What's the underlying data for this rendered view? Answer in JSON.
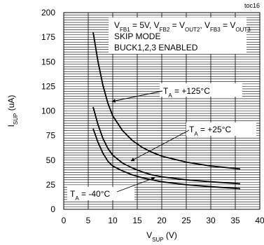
{
  "chart_data": {
    "type": "line",
    "figure_id": "toc16",
    "ylabel": {
      "main": "I",
      "sub": "SUP",
      "tail": " (uA)"
    },
    "xlabel": {
      "main": "V",
      "sub": "SUP",
      "tail": " (V)"
    },
    "xlim": [
      0,
      40
    ],
    "ylim": [
      0,
      200
    ],
    "xticks": [
      0,
      5,
      10,
      15,
      20,
      25,
      30,
      35,
      40
    ],
    "yticks": [
      0,
      25,
      50,
      75,
      100,
      125,
      150,
      175,
      200
    ],
    "grid": true,
    "conditions": [
      [
        {
          "t": "V"
        },
        {
          "t": "FB1",
          "sub": true
        },
        {
          "t": " = 5V, V"
        },
        {
          "t": "FB2",
          "sub": true
        },
        {
          "t": " = V"
        },
        {
          "t": "OUT2",
          "sub": true
        },
        {
          "t": ", V"
        },
        {
          "t": "FB3",
          "sub": true
        },
        {
          "t": " = V"
        },
        {
          "t": "OUT3",
          "sub": true
        }
      ],
      [
        {
          "t": "SKIP MODE"
        }
      ],
      [
        {
          "t": "BUCK1,2,3 ENABLED"
        }
      ]
    ],
    "series": [
      {
        "name": [
          {
            "t": "T"
          },
          {
            "t": "A",
            "sub": true
          },
          {
            "t": " = +125°C"
          }
        ],
        "x": [
          6,
          7,
          8,
          9,
          10,
          12,
          14,
          16,
          18,
          20,
          25,
          30,
          36
        ],
        "y": [
          180,
          150,
          126,
          108,
          95,
          80,
          70,
          63,
          58,
          54,
          48,
          44,
          41
        ]
      },
      {
        "name": [
          {
            "t": "T"
          },
          {
            "t": "A",
            "sub": true
          },
          {
            "t": " = +25°C"
          }
        ],
        "x": [
          6,
          7,
          8,
          9,
          10,
          12,
          14,
          16,
          18,
          20,
          25,
          30,
          36
        ],
        "y": [
          104,
          86,
          72,
          62,
          55,
          47,
          42,
          38,
          35,
          33,
          30,
          28,
          26
        ]
      },
      {
        "name": [
          {
            "t": "T"
          },
          {
            "t": "A",
            "sub": true
          },
          {
            "t": " = -40°C"
          }
        ],
        "x": [
          6,
          7,
          8,
          9,
          10,
          12,
          14,
          16,
          18,
          20,
          25,
          30,
          36
        ],
        "y": [
          82,
          68,
          57,
          49,
          44,
          39,
          35,
          32,
          30,
          28,
          25,
          23,
          21
        ]
      }
    ]
  }
}
